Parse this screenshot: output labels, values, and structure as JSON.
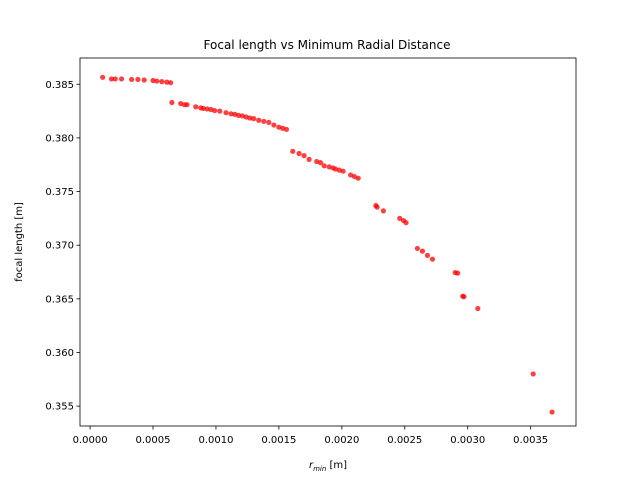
{
  "chart_data": {
    "type": "scatter",
    "title": "Focal length vs Minimum Radial Distance",
    "xlabel": {
      "base": "r",
      "sub": "min",
      "unit": " [m]"
    },
    "ylabel": "focal length [m]",
    "xlim": [
      -8e-05,
      0.00386
    ],
    "ylim": [
      0.35315,
      0.38745
    ],
    "xticks": [
      0.0,
      0.0005,
      0.001,
      0.0015,
      0.002,
      0.0025,
      0.003,
      0.0035
    ],
    "xtick_labels": [
      "0.0000",
      "0.0005",
      "0.0010",
      "0.0015",
      "0.0020",
      "0.0025",
      "0.0030",
      "0.0035"
    ],
    "yticks": [
      0.355,
      0.36,
      0.365,
      0.37,
      0.375,
      0.38,
      0.385
    ],
    "ytick_labels": [
      "0.355",
      "0.360",
      "0.365",
      "0.370",
      "0.375",
      "0.380",
      "0.385"
    ],
    "grid": false,
    "marker_color": "#ff0000",
    "marker_alpha": 0.75,
    "points": [
      [
        0.0001,
        0.38565
      ],
      [
        0.00017,
        0.3855
      ],
      [
        0.0002,
        0.3855
      ],
      [
        0.00025,
        0.3855
      ],
      [
        0.00033,
        0.38545
      ],
      [
        0.00038,
        0.38545
      ],
      [
        0.00043,
        0.3854
      ],
      [
        0.0005,
        0.38535
      ],
      [
        0.00053,
        0.3853
      ],
      [
        0.00057,
        0.38525
      ],
      [
        0.00061,
        0.3852
      ],
      [
        0.00064,
        0.38515
      ],
      [
        0.00065,
        0.3833
      ],
      [
        0.00072,
        0.3832
      ],
      [
        0.00075,
        0.3831
      ],
      [
        0.00077,
        0.3831
      ],
      [
        0.00084,
        0.3829
      ],
      [
        0.00088,
        0.3828
      ],
      [
        0.0009,
        0.38275
      ],
      [
        0.00093,
        0.3827
      ],
      [
        0.00096,
        0.38265
      ],
      [
        0.00099,
        0.38255
      ],
      [
        0.00103,
        0.3825
      ],
      [
        0.00108,
        0.38235
      ],
      [
        0.00112,
        0.38225
      ],
      [
        0.00115,
        0.3822
      ],
      [
        0.00118,
        0.3821
      ],
      [
        0.00121,
        0.38205
      ],
      [
        0.00124,
        0.38195
      ],
      [
        0.00127,
        0.38185
      ],
      [
        0.0013,
        0.3818
      ],
      [
        0.00134,
        0.38165
      ],
      [
        0.00138,
        0.38155
      ],
      [
        0.00142,
        0.38145
      ],
      [
        0.00146,
        0.3812
      ],
      [
        0.0015,
        0.381
      ],
      [
        0.00153,
        0.3809
      ],
      [
        0.00156,
        0.3808
      ],
      [
        0.00161,
        0.37875
      ],
      [
        0.00166,
        0.37855
      ],
      [
        0.0017,
        0.37835
      ],
      [
        0.00174,
        0.378
      ],
      [
        0.0018,
        0.3778
      ],
      [
        0.00183,
        0.3777
      ],
      [
        0.00186,
        0.3774
      ],
      [
        0.0019,
        0.3773
      ],
      [
        0.00193,
        0.3772
      ],
      [
        0.00195,
        0.3771
      ],
      [
        0.00198,
        0.377
      ],
      [
        0.00201,
        0.3769
      ],
      [
        0.00207,
        0.37655
      ],
      [
        0.0021,
        0.3764
      ],
      [
        0.00213,
        0.37625
      ],
      [
        0.00227,
        0.3737
      ],
      [
        0.00228,
        0.37355
      ],
      [
        0.00233,
        0.3732
      ],
      [
        0.00246,
        0.3725
      ],
      [
        0.00249,
        0.3723
      ],
      [
        0.00251,
        0.3721
      ],
      [
        0.0026,
        0.3697
      ],
      [
        0.00264,
        0.36945
      ],
      [
        0.00268,
        0.36905
      ],
      [
        0.00272,
        0.3687
      ],
      [
        0.0029,
        0.36745
      ],
      [
        0.00292,
        0.3674
      ],
      [
        0.00296,
        0.36525
      ],
      [
        0.00297,
        0.3652
      ],
      [
        0.00308,
        0.3641
      ],
      [
        0.00352,
        0.358
      ],
      [
        0.00367,
        0.35445
      ]
    ]
  }
}
